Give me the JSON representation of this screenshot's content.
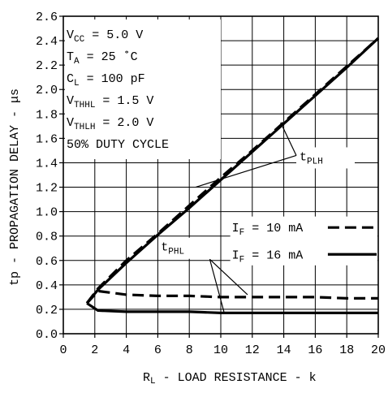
{
  "chart_data": {
    "type": "line",
    "title": "",
    "xlabel": {
      "base": "R",
      "sub": "L",
      "rest": " - LOAD RESISTANCE - k"
    },
    "ylabel": {
      "text": "tp - PROPAGATION DELAY - μs"
    },
    "xlim": [
      0,
      20
    ],
    "ylim": [
      0,
      2.6
    ],
    "x_ticks": [
      "0",
      "2",
      "4",
      "6",
      "8",
      "10",
      "12",
      "14",
      "16",
      "18",
      "20"
    ],
    "y_ticks": [
      "0.0",
      "0.2",
      "0.4",
      "0.6",
      "0.8",
      "1.0",
      "1.2",
      "1.4",
      "1.6",
      "1.8",
      "2.0",
      "2.2",
      "2.4",
      "2.6"
    ],
    "grid": true,
    "conditions": [
      {
        "base": "V",
        "sub": "CC",
        "rest": " = 5.0 V"
      },
      {
        "base": "T",
        "sub": "A",
        "rest": " = 25 ˚C"
      },
      {
        "base": "C",
        "sub": "L",
        "rest": " = 100 pF"
      },
      {
        "base": "V",
        "sub": "THHL",
        "rest": " = 1.5 V"
      },
      {
        "base": "V",
        "sub": "THLH",
        "rest": " = 2.0 V"
      },
      {
        "base": "",
        "sub": "",
        "rest": "50% DUTY CYCLE"
      }
    ],
    "legend": [
      {
        "base": "I",
        "sub": "F",
        "rest": " = 10 mA",
        "style": "dashed"
      },
      {
        "base": "I",
        "sub": "F",
        "rest": " = 16 mA",
        "style": "solid"
      }
    ],
    "curve_labels": {
      "plh": {
        "base": "t",
        "sub": "PLH"
      },
      "phl": {
        "base": "t",
        "sub": "PHL"
      }
    },
    "series": [
      {
        "curve": "tPLH",
        "style": "dashed",
        "x": [
          1.5,
          2.2,
          4,
          6,
          8,
          10,
          12,
          14,
          16,
          18,
          20
        ],
        "y": [
          0.25,
          0.37,
          0.6,
          0.82,
          1.05,
          1.28,
          1.5,
          1.73,
          1.96,
          2.19,
          2.42
        ]
      },
      {
        "curve": "tPLH",
        "style": "solid",
        "x": [
          1.5,
          2.2,
          4,
          6,
          8,
          10,
          12,
          14,
          16,
          18,
          20
        ],
        "y": [
          0.25,
          0.36,
          0.58,
          0.81,
          1.03,
          1.26,
          1.49,
          1.72,
          1.95,
          2.18,
          2.42
        ]
      },
      {
        "curve": "tPHL",
        "style": "dashed",
        "x": [
          1.5,
          2.2,
          4,
          6,
          8,
          10,
          12,
          14,
          16,
          18,
          20
        ],
        "y": [
          0.25,
          0.35,
          0.32,
          0.31,
          0.31,
          0.3,
          0.3,
          0.3,
          0.3,
          0.29,
          0.29
        ]
      },
      {
        "curve": "tPHL",
        "style": "solid",
        "x": [
          1.5,
          2.2,
          4,
          6,
          8,
          10,
          12,
          14,
          16,
          18,
          20
        ],
        "y": [
          0.25,
          0.19,
          0.18,
          0.18,
          0.18,
          0.17,
          0.17,
          0.17,
          0.17,
          0.17,
          0.17
        ]
      }
    ]
  }
}
